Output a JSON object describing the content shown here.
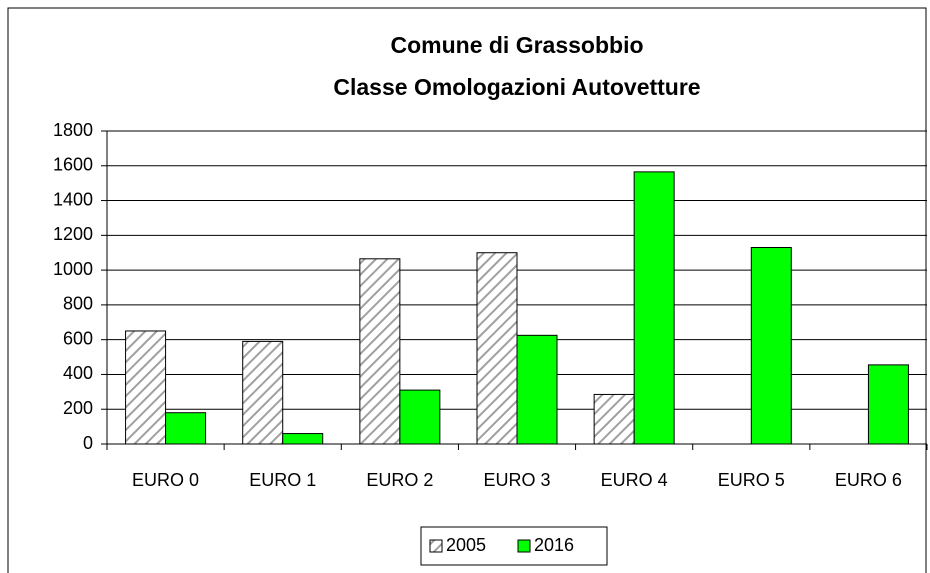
{
  "chart_data": {
    "type": "bar",
    "title": [
      "Comune di Grassobbio",
      "Classe  Omologazioni Autovetture"
    ],
    "categories": [
      "EURO 0",
      "EURO 1",
      "EURO 2",
      "EURO 3",
      "EURO 4",
      "EURO 5",
      "EURO 6"
    ],
    "series": [
      {
        "name": "2005",
        "color": "#a0a0a0",
        "pattern": "diagonal-hatch",
        "values": [
          650,
          590,
          1065,
          1100,
          285,
          null,
          null
        ]
      },
      {
        "name": "2016",
        "color": "#00ff00",
        "values": [
          180,
          60,
          310,
          625,
          1565,
          1130,
          455
        ]
      }
    ],
    "ylim": [
      0,
      1800
    ],
    "yticks": [
      0,
      200,
      400,
      600,
      800,
      1000,
      1200,
      1400,
      1600,
      1800
    ],
    "grid": true,
    "legend": "bottom"
  }
}
